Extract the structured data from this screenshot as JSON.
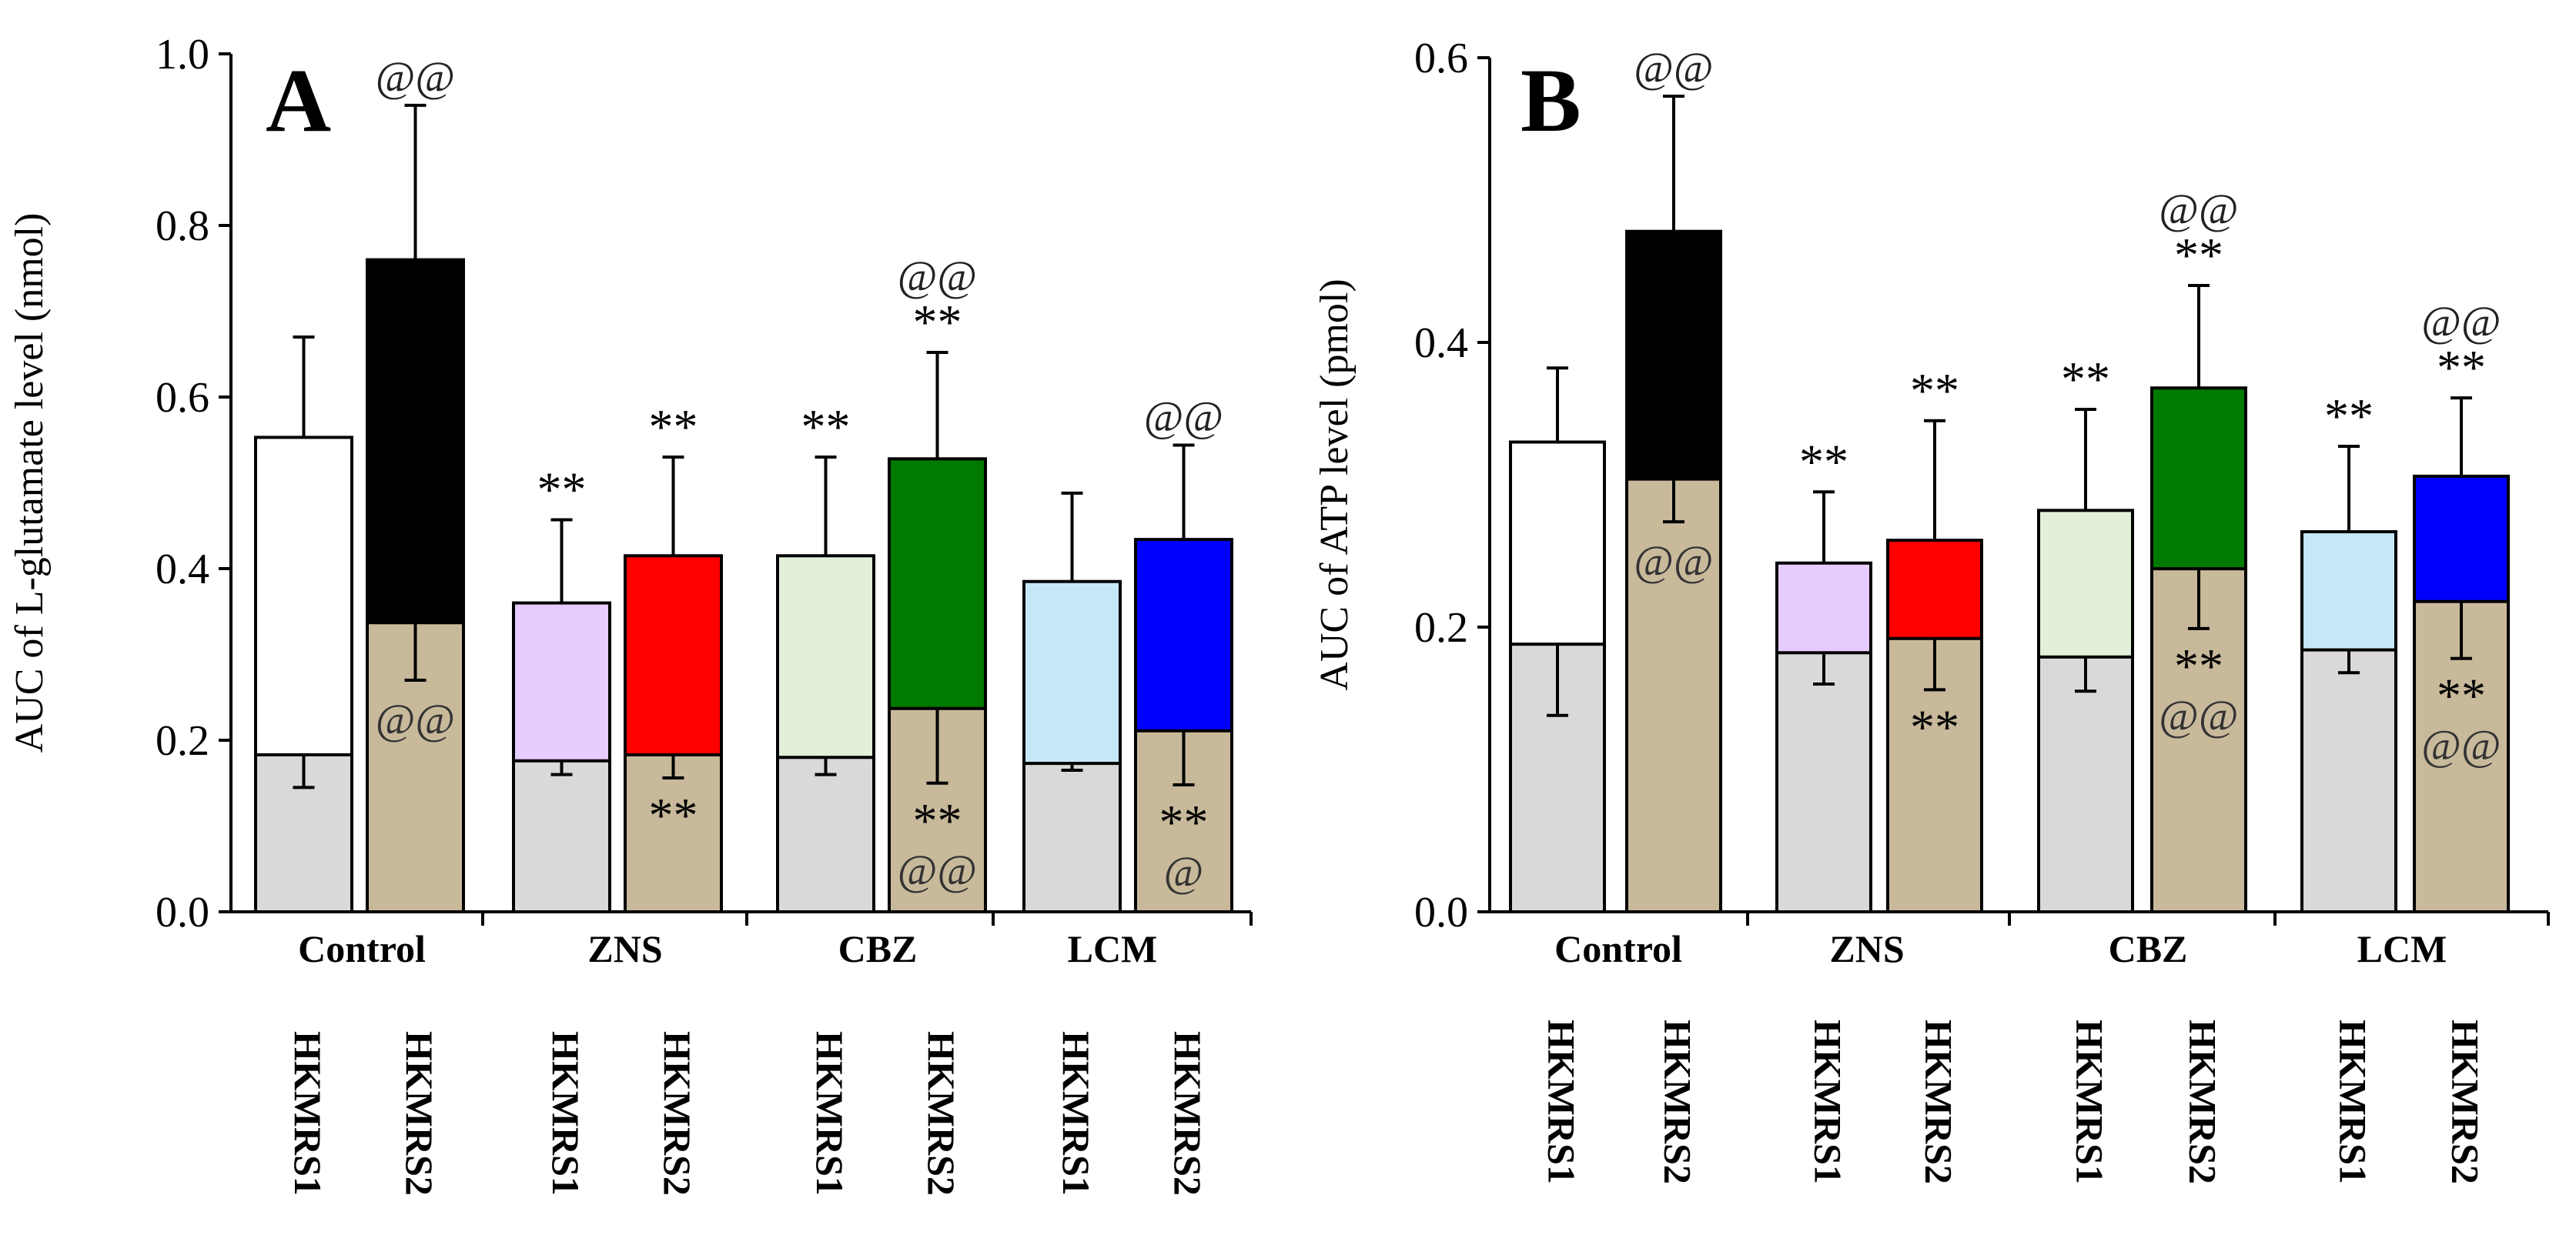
{
  "figure": {
    "panels": [
      "A",
      "B"
    ]
  },
  "chart_data": [
    {
      "panel": "A",
      "type": "bar",
      "subtype": "stacked-overlay",
      "ylabel": "AUC of L-glutamate level (nmol)",
      "ylim": [
        0,
        1.0
      ],
      "yticks": [
        "0.0",
        "0.2",
        "0.4",
        "0.6",
        "0.8",
        "1.0"
      ],
      "groups": [
        "Control",
        "ZNS",
        "CBZ",
        "LCM"
      ],
      "bar_labels": [
        "HKMRS1",
        "HKMRS2"
      ],
      "bars": [
        {
          "group": "Control",
          "label": "HKMRS1",
          "total": 0.553,
          "total_err": 0.117,
          "basal": 0.183,
          "basal_err": 0.038,
          "top_color": "#ffffff",
          "base_color": "#d9d9d9",
          "above": [],
          "inside": []
        },
        {
          "group": "Control",
          "label": "HKMRS2",
          "total": 0.76,
          "total_err": 0.18,
          "basal": 0.337,
          "basal_err": 0.067,
          "top_color": "#000000",
          "base_color": "#c8b99b",
          "above": [
            "@@"
          ],
          "inside": [
            "@@"
          ]
        },
        {
          "group": "ZNS",
          "label": "HKMRS1",
          "total": 0.36,
          "total_err": 0.097,
          "basal": 0.176,
          "basal_err": 0.016,
          "top_color": "#e6ccff",
          "base_color": "#d9d9d9",
          "above": [
            "**"
          ],
          "inside": []
        },
        {
          "group": "ZNS",
          "label": "HKMRS2",
          "total": 0.415,
          "total_err": 0.115,
          "basal": 0.183,
          "basal_err": 0.027,
          "top_color": "#ff0000",
          "base_color": "#c8b99b",
          "above": [
            "**"
          ],
          "inside": [
            "**"
          ]
        },
        {
          "group": "CBZ",
          "label": "HKMRS1",
          "total": 0.415,
          "total_err": 0.115,
          "basal": 0.18,
          "basal_err": 0.02,
          "top_color": "#e2efd9",
          "base_color": "#d9d9d9",
          "above": [
            "**"
          ],
          "inside": []
        },
        {
          "group": "CBZ",
          "label": "HKMRS2",
          "total": 0.528,
          "total_err": 0.124,
          "basal": 0.237,
          "basal_err": 0.087,
          "top_color": "#007a00",
          "base_color": "#c8b99b",
          "above": [
            "@@",
            "**"
          ],
          "inside": [
            "**",
            "@@"
          ]
        },
        {
          "group": "LCM",
          "label": "HKMRS1",
          "total": 0.385,
          "total_err": 0.103,
          "basal": 0.173,
          "basal_err": 0.008,
          "top_color": "#c5e8f7",
          "base_color": "#d9d9d9",
          "above": [],
          "inside": []
        },
        {
          "group": "LCM",
          "label": "HKMRS2",
          "total": 0.434,
          "total_err": 0.11,
          "basal": 0.211,
          "basal_err": 0.063,
          "top_color": "#0000ff",
          "base_color": "#c8b99b",
          "above": [
            "@@"
          ],
          "inside": [
            "**",
            "@"
          ]
        }
      ]
    },
    {
      "panel": "B",
      "type": "bar",
      "subtype": "stacked-overlay",
      "ylabel": "AUC of ATP level (pmol)",
      "ylim": [
        0,
        0.6
      ],
      "yticks": [
        "0.0",
        "0.2",
        "0.4",
        "0.6"
      ],
      "groups": [
        "Control",
        "ZNS",
        "CBZ",
        "LCM"
      ],
      "bar_labels": [
        "HKMRS1",
        "HKMRS2"
      ],
      "bars": [
        {
          "group": "Control",
          "label": "HKMRS1",
          "total": 0.33,
          "total_err": 0.052,
          "basal": 0.188,
          "basal_err": 0.05,
          "top_color": "#ffffff",
          "base_color": "#d9d9d9",
          "above": [],
          "inside": []
        },
        {
          "group": "Control",
          "label": "HKMRS2",
          "total": 0.478,
          "total_err": 0.095,
          "basal": 0.304,
          "basal_err": 0.03,
          "top_color": "#000000",
          "base_color": "#c8b99b",
          "above": [
            "@@"
          ],
          "inside": [
            "@@"
          ]
        },
        {
          "group": "ZNS",
          "label": "HKMRS1",
          "total": 0.245,
          "total_err": 0.05,
          "basal": 0.182,
          "basal_err": 0.022,
          "top_color": "#e6ccff",
          "base_color": "#d9d9d9",
          "above": [
            "**"
          ],
          "inside": []
        },
        {
          "group": "ZNS",
          "label": "HKMRS2",
          "total": 0.261,
          "total_err": 0.084,
          "basal": 0.192,
          "basal_err": 0.036,
          "top_color": "#ff0000",
          "base_color": "#c8b99b",
          "above": [
            "**"
          ],
          "inside": [
            "**"
          ]
        },
        {
          "group": "CBZ",
          "label": "HKMRS1",
          "total": 0.282,
          "total_err": 0.071,
          "basal": 0.179,
          "basal_err": 0.024,
          "top_color": "#e2efd9",
          "base_color": "#d9d9d9",
          "above": [
            "**"
          ],
          "inside": []
        },
        {
          "group": "CBZ",
          "label": "HKMRS2",
          "total": 0.368,
          "total_err": 0.072,
          "basal": 0.241,
          "basal_err": 0.042,
          "top_color": "#007a00",
          "base_color": "#c8b99b",
          "above": [
            "@@",
            "**"
          ],
          "inside": [
            "**",
            "@@"
          ]
        },
        {
          "group": "LCM",
          "label": "HKMRS1",
          "total": 0.267,
          "total_err": 0.06,
          "basal": 0.184,
          "basal_err": 0.016,
          "top_color": "#c5e8f7",
          "base_color": "#d9d9d9",
          "above": [
            "**"
          ],
          "inside": []
        },
        {
          "group": "LCM",
          "label": "HKMRS2",
          "total": 0.306,
          "total_err": 0.055,
          "basal": 0.218,
          "basal_err": 0.04,
          "top_color": "#0000ff",
          "base_color": "#c8b99b",
          "above": [
            "@@",
            "**"
          ],
          "inside": [
            "**",
            "@@"
          ]
        }
      ]
    }
  ]
}
